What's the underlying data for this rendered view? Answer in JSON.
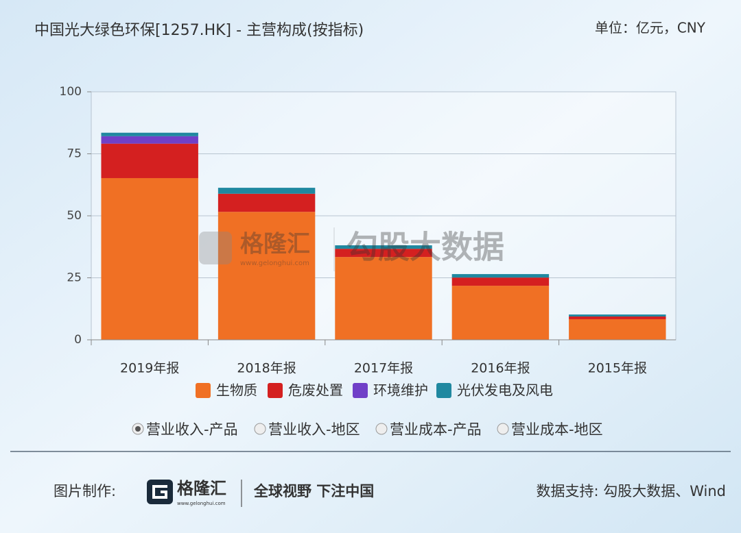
{
  "header": {
    "title": "中国光大绿色环保[1257.HK] - 主营构成(按指标)",
    "unit": "单位：亿元，CNY"
  },
  "chart_data": {
    "type": "stacked_bar",
    "categories": [
      "2019年报",
      "2018年报",
      "2017年报",
      "2016年报",
      "2015年报"
    ],
    "series": [
      {
        "name": "生物质",
        "color": "#f07024",
        "values": [
          65.2,
          51.6,
          33.4,
          21.8,
          8.3
        ]
      },
      {
        "name": "危废处置",
        "color": "#d42020",
        "values": [
          13.9,
          7.3,
          3.3,
          3.3,
          1.1
        ]
      },
      {
        "name": "环境维护",
        "color": "#7040c8",
        "values": [
          3.0,
          0,
          0,
          0,
          0
        ]
      },
      {
        "name": "光伏发电及风电",
        "color": "#2088a0",
        "values": [
          1.4,
          2.4,
          1.4,
          1.4,
          0.8
        ]
      }
    ],
    "ylim": [
      0,
      100
    ],
    "yticks": [
      0,
      25,
      50,
      75,
      100
    ],
    "grid": true
  },
  "options": [
    "营业收入-产品",
    "营业收入-地区",
    "营业成本-产品",
    "营业成本-地区"
  ],
  "selected_option": 0,
  "watermark": {
    "brand": "格隆汇",
    "site": "www.gelonghui.com",
    "data": "勾股大数据"
  },
  "footer": {
    "made_by": "图片制作:",
    "brand": "格隆汇",
    "site": "www.gelonghui.com",
    "slogan": "全球视野 下注中国",
    "source": "数据支持: 勾股大数据、Wind"
  }
}
